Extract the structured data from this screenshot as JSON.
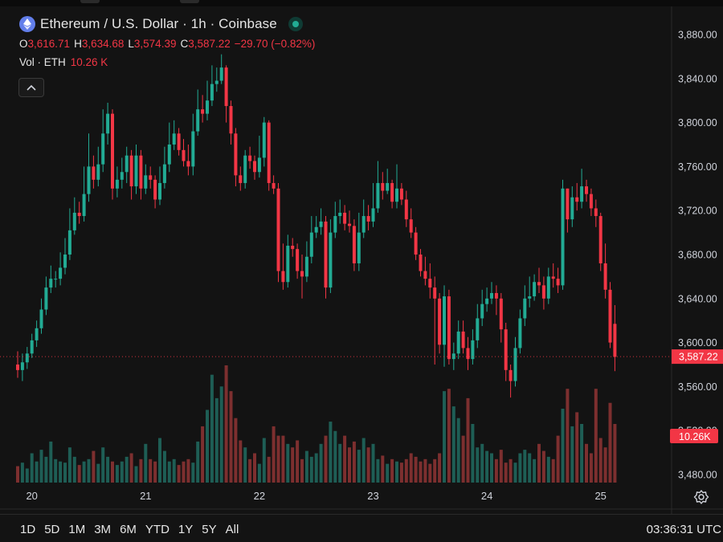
{
  "header": {
    "title": "Ethereum / U.S. Dollar · 1h · Coinbase",
    "ohlc": [
      {
        "k": "O",
        "v": "3,616.71"
      },
      {
        "k": "H",
        "v": "3,634.68"
      },
      {
        "k": "L",
        "v": "3,574.39"
      },
      {
        "k": "C",
        "v": "3,587.22"
      }
    ],
    "change": "−29.70 (−0.82%)",
    "vol_label": "Vol · ETH",
    "vol_value": "10.26 K"
  },
  "time_ranges": [
    "1D",
    "5D",
    "1M",
    "3M",
    "6M",
    "YTD",
    "1Y",
    "5Y",
    "All"
  ],
  "clock": "03:36:31 UTC",
  "icons": {
    "logo": "ethereum-logo-icon",
    "live": "market-open-dot-icon",
    "collapse": "chevron-up-icon",
    "settings": "gear-icon"
  },
  "colors": {
    "up": "#22ab94",
    "down": "#f23645",
    "up_vol": "#1e5e55",
    "down_vol": "#7d2f2f",
    "background": "#131313"
  },
  "chart_data": {
    "type": "candlestick",
    "symbol": "ETHUSD",
    "interval": "1h",
    "ylim": [
      3460,
      3900
    ],
    "y_ticks": [
      3480,
      3520,
      3560,
      3600,
      3640,
      3680,
      3720,
      3760,
      3800,
      3840,
      3880
    ],
    "y_tick_labels": [
      "3,480.00",
      "3,520.00",
      "3,560.00",
      "3,600.00",
      "3,640.00",
      "3,680.00",
      "3,720.00",
      "3,760.00",
      "3,800.00",
      "3,840.00",
      "3,880.00"
    ],
    "x_ticks": [
      {
        "label": "20",
        "index": 3
      },
      {
        "label": "21",
        "index": 27
      },
      {
        "label": "22",
        "index": 51
      },
      {
        "label": "23",
        "index": 75
      },
      {
        "label": "24",
        "index": 99
      },
      {
        "label": "25",
        "index": 123
      }
    ],
    "last_price": 3587.22,
    "last_price_label": "3,587.22",
    "last_volume_label": "10.26K",
    "close": [
      3575,
      3582,
      3590,
      3602,
      3613,
      3630,
      3650,
      3658,
      3658,
      3668,
      3680,
      3702,
      3718,
      3715,
      3735,
      3760,
      3748,
      3762,
      3790,
      3808,
      3740,
      3748,
      3755,
      3770,
      3742,
      3770,
      3740,
      3752,
      3748,
      3730,
      3745,
      3762,
      3780,
      3790,
      3775,
      3765,
      3760,
      3792,
      3812,
      3808,
      3820,
      3835,
      3838,
      3850,
      3815,
      3790,
      3752,
      3745,
      3770,
      3765,
      3755,
      3768,
      3800,
      3745,
      3740,
      3665,
      3655,
      3688,
      3685,
      3665,
      3660,
      3678,
      3700,
      3705,
      3710,
      3650,
      3700,
      3715,
      3718,
      3708,
      3706,
      3672,
      3700,
      3715,
      3710,
      3722,
      3745,
      3738,
      3745,
      3728,
      3740,
      3730,
      3712,
      3700,
      3680,
      3665,
      3658,
      3650,
      3640,
      3598,
      3642,
      3585,
      3590,
      3610,
      3595,
      3585,
      3602,
      3622,
      3635,
      3640,
      3645,
      3640,
      3612,
      3575,
      3565,
      3595,
      3622,
      3640,
      3642,
      3655,
      3652,
      3640,
      3660,
      3658,
      3652,
      3740,
      3712,
      3732,
      3728,
      3742,
      3735,
      3722,
      3715,
      3672,
      3648,
      3600,
      3587
    ],
    "open": [
      3580,
      3575,
      3582,
      3590,
      3602,
      3613,
      3630,
      3650,
      3658,
      3658,
      3668,
      3680,
      3702,
      3718,
      3715,
      3735,
      3760,
      3748,
      3762,
      3790,
      3808,
      3740,
      3748,
      3755,
      3770,
      3742,
      3770,
      3740,
      3752,
      3748,
      3730,
      3745,
      3762,
      3780,
      3790,
      3775,
      3765,
      3760,
      3792,
      3812,
      3808,
      3820,
      3835,
      3838,
      3850,
      3815,
      3790,
      3752,
      3745,
      3770,
      3765,
      3755,
      3768,
      3800,
      3745,
      3740,
      3665,
      3655,
      3688,
      3685,
      3665,
      3660,
      3678,
      3700,
      3705,
      3710,
      3650,
      3700,
      3715,
      3718,
      3708,
      3706,
      3672,
      3700,
      3715,
      3710,
      3722,
      3745,
      3738,
      3745,
      3728,
      3740,
      3730,
      3712,
      3700,
      3680,
      3665,
      3658,
      3650,
      3640,
      3598,
      3642,
      3585,
      3590,
      3610,
      3595,
      3585,
      3602,
      3622,
      3635,
      3640,
      3645,
      3640,
      3612,
      3575,
      3565,
      3595,
      3622,
      3640,
      3642,
      3655,
      3652,
      3640,
      3660,
      3658,
      3652,
      3740,
      3712,
      3732,
      3728,
      3742,
      3735,
      3722,
      3715,
      3672,
      3648,
      3617
    ],
    "high": [
      3592,
      3590,
      3596,
      3608,
      3620,
      3640,
      3660,
      3670,
      3665,
      3682,
      3695,
      3722,
      3732,
      3728,
      3760,
      3790,
      3770,
      3778,
      3812,
      3818,
      3812,
      3760,
      3768,
      3778,
      3775,
      3780,
      3775,
      3762,
      3760,
      3752,
      3760,
      3778,
      3800,
      3802,
      3795,
      3785,
      3780,
      3808,
      3830,
      3825,
      3838,
      3852,
      3850,
      3862,
      3852,
      3820,
      3795,
      3760,
      3775,
      3778,
      3770,
      3788,
      3805,
      3802,
      3752,
      3745,
      3690,
      3698,
      3695,
      3690,
      3680,
      3692,
      3715,
      3715,
      3722,
      3715,
      3712,
      3728,
      3730,
      3725,
      3720,
      3712,
      3718,
      3730,
      3725,
      3745,
      3765,
      3755,
      3758,
      3748,
      3762,
      3745,
      3738,
      3722,
      3705,
      3685,
      3678,
      3672,
      3660,
      3645,
      3652,
      3648,
      3600,
      3620,
      3620,
      3605,
      3612,
      3635,
      3648,
      3650,
      3655,
      3652,
      3645,
      3618,
      3580,
      3605,
      3630,
      3652,
      3660,
      3662,
      3668,
      3660,
      3668,
      3672,
      3668,
      3748,
      3740,
      3742,
      3745,
      3758,
      3748,
      3740,
      3730,
      3718,
      3690,
      3655,
      3634
    ],
    "low": [
      3568,
      3565,
      3576,
      3586,
      3596,
      3608,
      3625,
      3645,
      3650,
      3652,
      3662,
      3675,
      3698,
      3708,
      3710,
      3728,
      3740,
      3742,
      3755,
      3780,
      3730,
      3732,
      3740,
      3745,
      3730,
      3735,
      3730,
      3735,
      3740,
      3722,
      3725,
      3740,
      3755,
      3775,
      3770,
      3760,
      3752,
      3752,
      3788,
      3800,
      3802,
      3815,
      3828,
      3835,
      3800,
      3780,
      3742,
      3738,
      3740,
      3758,
      3748,
      3750,
      3760,
      3738,
      3735,
      3655,
      3648,
      3650,
      3678,
      3658,
      3640,
      3655,
      3672,
      3695,
      3698,
      3640,
      3645,
      3695,
      3708,
      3702,
      3700,
      3665,
      3665,
      3695,
      3702,
      3705,
      3718,
      3730,
      3735,
      3722,
      3722,
      3725,
      3705,
      3695,
      3675,
      3660,
      3652,
      3640,
      3580,
      3590,
      3578,
      3580,
      3575,
      3585,
      3590,
      3575,
      3580,
      3595,
      3615,
      3628,
      3635,
      3625,
      3600,
      3565,
      3550,
      3560,
      3590,
      3615,
      3632,
      3638,
      3645,
      3630,
      3635,
      3650,
      3645,
      3648,
      3700,
      3705,
      3720,
      3722,
      3728,
      3715,
      3705,
      3665,
      3640,
      3595,
      3574
    ],
    "volume_ratio": [
      0.14,
      0.17,
      0.12,
      0.25,
      0.18,
      0.28,
      0.22,
      0.35,
      0.2,
      0.18,
      0.17,
      0.3,
      0.22,
      0.15,
      0.18,
      0.2,
      0.27,
      0.16,
      0.3,
      0.22,
      0.18,
      0.15,
      0.18,
      0.22,
      0.25,
      0.14,
      0.2,
      0.33,
      0.2,
      0.18,
      0.38,
      0.27,
      0.18,
      0.2,
      0.15,
      0.18,
      0.2,
      0.17,
      0.35,
      0.48,
      0.62,
      0.92,
      0.72,
      0.82,
      1.0,
      0.78,
      0.55,
      0.36,
      0.3,
      0.2,
      0.25,
      0.16,
      0.38,
      0.22,
      0.48,
      0.4,
      0.4,
      0.33,
      0.3,
      0.36,
      0.2,
      0.27,
      0.22,
      0.25,
      0.33,
      0.4,
      0.52,
      0.44,
      0.33,
      0.4,
      0.3,
      0.35,
      0.28,
      0.38,
      0.3,
      0.33,
      0.2,
      0.23,
      0.16,
      0.2,
      0.18,
      0.17,
      0.2,
      0.25,
      0.22,
      0.18,
      0.2,
      0.16,
      0.2,
      0.25,
      0.78,
      0.8,
      0.65,
      0.55,
      0.4,
      0.72,
      0.5,
      0.3,
      0.33,
      0.27,
      0.25,
      0.2,
      0.28,
      0.17,
      0.2,
      0.17,
      0.25,
      0.28,
      0.25,
      0.2,
      0.33,
      0.27,
      0.22,
      0.2,
      0.4,
      0.63,
      0.8,
      0.48,
      0.6,
      0.5,
      0.33,
      0.25,
      0.8,
      0.38,
      0.3,
      0.68,
      0.5
    ]
  }
}
